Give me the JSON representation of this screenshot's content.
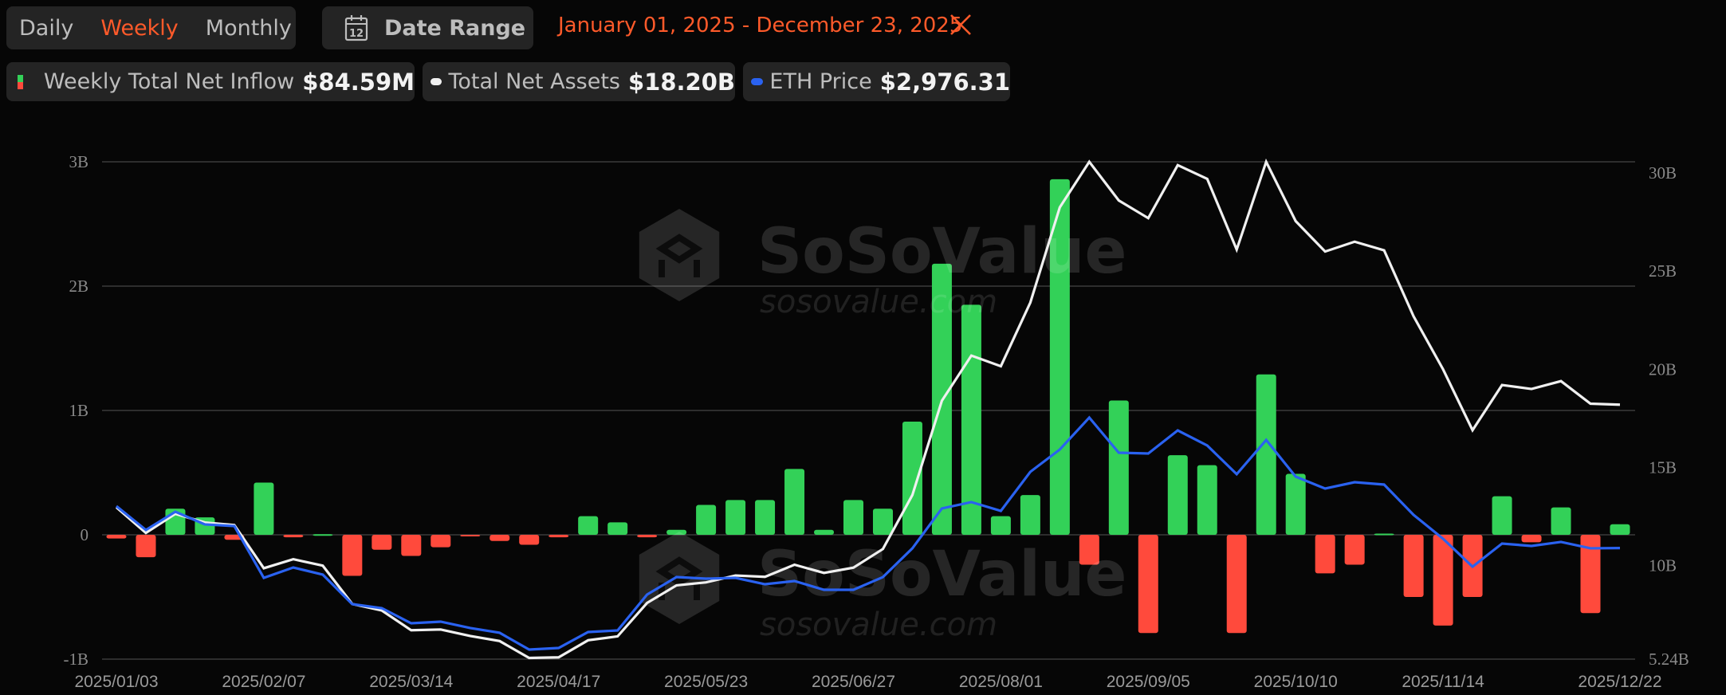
{
  "controls": {
    "periods": [
      {
        "label": "Daily",
        "active": false
      },
      {
        "label": "Weekly",
        "active": true
      },
      {
        "label": "Monthly",
        "active": false
      }
    ],
    "date_range_label": "Date Range",
    "calendar_icon_day": "12",
    "selected_range": "January 01, 2025 - December 23, 2025"
  },
  "legend": [
    {
      "label": "Weekly Total Net Inflow",
      "value": "$84.59M"
    },
    {
      "label": "Total Net Assets",
      "value": "$18.20B"
    },
    {
      "label": "ETH Price",
      "value": "$2,976.31"
    }
  ],
  "colors": {
    "inflow_positive": "#33d158",
    "inflow_negative": "#ff4a3c",
    "total_net_assets": "#f0f0f0",
    "eth_price": "#2a62f0",
    "accent": "#ff5a2a",
    "gridline": "#3a3a3a"
  },
  "watermark": {
    "brand": "SoSoValue",
    "url": "sosovalue.com"
  },
  "chart_data": {
    "type": "bar+line",
    "title": "",
    "legend_position": "top",
    "grid": true,
    "x_tick_labels": [
      "2025/01/03",
      "2025/02/07",
      "2025/03/14",
      "2025/04/17",
      "2025/05/23",
      "2025/06/27",
      "2025/08/01",
      "2025/09/05",
      "2025/10/10",
      "2025/11/14",
      "2025/12/22"
    ],
    "x_tick_indices": [
      0,
      5,
      10,
      15,
      20,
      25,
      30,
      35,
      40,
      45,
      51
    ],
    "left_axis": {
      "ticks": [
        "3B",
        "2B",
        "1B",
        "0",
        "-1B"
      ],
      "values": [
        3,
        2,
        1,
        0,
        -1
      ],
      "ylim": [
        -1,
        3
      ],
      "unit": "B USD"
    },
    "right_axis": {
      "ticks": [
        "30B",
        "25B",
        "20B",
        "15B",
        "10B",
        "5.24B"
      ],
      "values": [
        30,
        25,
        20,
        15,
        10,
        5.24
      ],
      "ylim": [
        5.24,
        30.57
      ],
      "unit": "B USD"
    },
    "series": [
      {
        "name": "Weekly Total Net Inflow",
        "type": "bar",
        "axis": "left",
        "unit": "B USD",
        "values": [
          -0.03,
          -0.18,
          0.21,
          0.14,
          -0.04,
          0.42,
          -0.02,
          0.005,
          -0.33,
          -0.12,
          -0.17,
          -0.1,
          -0.01,
          -0.05,
          -0.08,
          -0.02,
          0.15,
          0.1,
          -0.02,
          0.04,
          0.24,
          0.28,
          0.28,
          0.53,
          0.04,
          0.28,
          0.21,
          0.91,
          2.18,
          1.85,
          0.15,
          0.32,
          2.86,
          -0.24,
          1.08,
          -0.79,
          0.64,
          0.56,
          -0.79,
          1.29,
          0.49,
          -0.31,
          -0.24,
          0.01,
          -0.5,
          -0.73,
          -0.5,
          0.31,
          -0.06,
          0.22,
          -0.63,
          0.085
        ]
      },
      {
        "name": "Total Net Assets",
        "type": "line",
        "axis": "right",
        "unit": "B USD",
        "values": [
          12.97,
          11.67,
          12.64,
          12.2,
          12.07,
          9.87,
          10.33,
          10.0,
          8.05,
          7.72,
          6.71,
          6.75,
          6.42,
          6.16,
          5.3,
          5.33,
          6.2,
          6.4,
          8.1,
          9.0,
          9.15,
          9.5,
          9.43,
          10.05,
          9.63,
          9.9,
          10.85,
          13.6,
          18.4,
          20.7,
          20.16,
          23.4,
          28.25,
          30.57,
          28.6,
          27.7,
          30.4,
          29.7,
          26.1,
          30.57,
          27.55,
          26.0,
          26.5,
          26.06,
          22.7,
          20.0,
          16.9,
          19.2,
          19.0,
          19.4,
          18.25,
          18.2
        ]
      },
      {
        "name": "ETH Price",
        "type": "line",
        "axis": "hidden",
        "unit": "USD",
        "values": [
          3563,
          3229,
          3485,
          3307,
          3284,
          2560,
          2705,
          2605,
          2193,
          2137,
          1925,
          1948,
          1859,
          1792,
          1558,
          1580,
          1803,
          1825,
          2326,
          2571,
          2549,
          2560,
          2471,
          2516,
          2393,
          2393,
          2571,
          2973,
          3530,
          3619,
          3496,
          4042,
          4354,
          4800,
          4309,
          4298,
          4621,
          4410,
          4009,
          4487,
          3975,
          3808,
          3897,
          3864,
          3440,
          3106,
          2716,
          3039,
          3006,
          3062,
          2973,
          2976.31
        ]
      }
    ]
  }
}
